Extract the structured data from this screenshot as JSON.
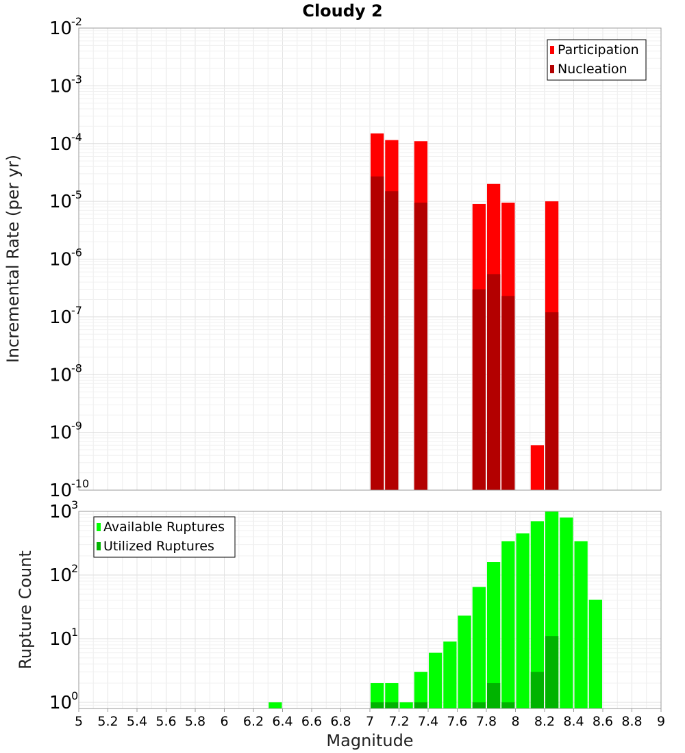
{
  "chart_data": {
    "type": "bar",
    "title": "Cloudy 2",
    "xlabel": "Magnitude",
    "xlim": [
      5,
      9
    ],
    "xticks": [
      "5",
      "5.2",
      "5.4",
      "5.6",
      "5.8",
      "6",
      "6.2",
      "6.4",
      "6.6",
      "6.8",
      "7",
      "7.2",
      "7.4",
      "7.6",
      "7.8",
      "8",
      "8.2",
      "8.4",
      "8.6",
      "8.8",
      "9"
    ],
    "panels": [
      {
        "ylabel": "Incremental Rate (per yr)",
        "yscale": "log",
        "ylim": [
          1e-10,
          0.01
        ],
        "ytick_exponents": [
          "-10",
          "-9",
          "-8",
          "-7",
          "-6",
          "-5",
          "-4",
          "-3",
          "-2"
        ],
        "legend_position": "top-right",
        "series": [
          {
            "name": "Participation",
            "color": "#ff0000",
            "x": [
              7.05,
              7.15,
              7.35,
              7.75,
              7.85,
              7.95,
              8.15,
              8.25
            ],
            "values": [
              0.00015,
              0.000115,
              0.00011,
              9e-06,
              2e-05,
              9.5e-06,
              6e-10,
              1e-05
            ]
          },
          {
            "name": "Nucleation",
            "color": "#b30000",
            "x": [
              7.05,
              7.15,
              7.35,
              7.75,
              7.85,
              7.95,
              8.25
            ],
            "values": [
              2.7e-05,
              1.5e-05,
              9.5e-06,
              3e-07,
              5.5e-07,
              2.3e-07,
              1.2e-07
            ]
          }
        ]
      },
      {
        "ylabel": "Rupture Count",
        "yscale": "log",
        "ylim": [
          0.8,
          1000
        ],
        "ytick_exponents": [
          "0",
          "1",
          "2",
          "3"
        ],
        "legend_position": "top-left",
        "series": [
          {
            "name": "Available Ruptures",
            "color": "#00ff00",
            "x": [
              6.35,
              7.05,
              7.15,
              7.25,
              7.35,
              7.45,
              7.55,
              7.65,
              7.75,
              7.85,
              7.95,
              8.05,
              8.15,
              8.25,
              8.35,
              8.45,
              8.55
            ],
            "values": [
              1,
              2,
              2,
              1,
              3,
              6,
              9,
              23,
              65,
              160,
              340,
              450,
              700,
              1000,
              800,
              340,
              41
            ]
          },
          {
            "name": "Utilized Ruptures",
            "color": "#00b300",
            "x": [
              7.05,
              7.15,
              7.35,
              7.75,
              7.85,
              7.95,
              8.15,
              8.25
            ],
            "values": [
              1,
              1,
              1,
              1,
              2,
              1,
              3,
              11
            ]
          }
        ]
      }
    ]
  }
}
